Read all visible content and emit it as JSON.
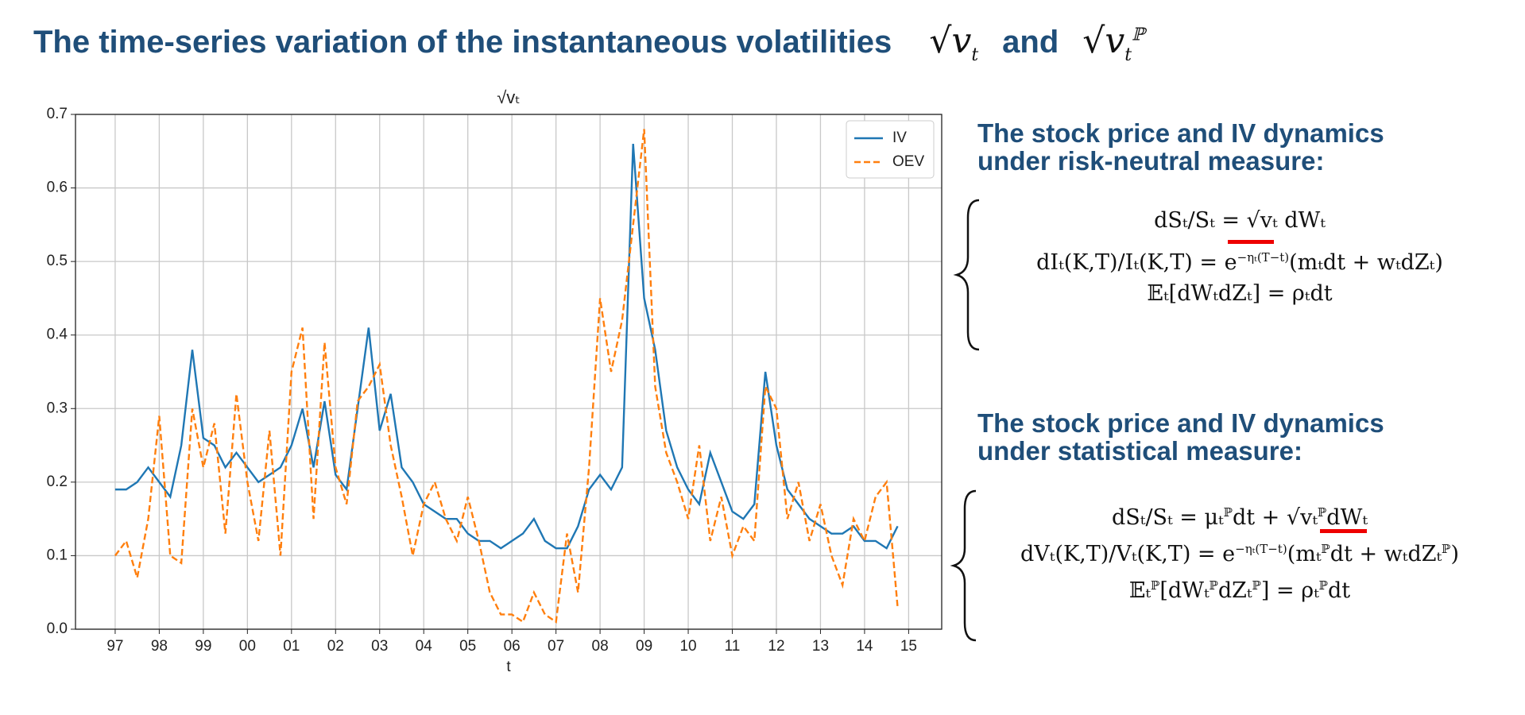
{
  "header": {
    "title": "The time-series variation of the instantaneous volatilities",
    "math1": {
      "base": "√v",
      "sub": "t"
    },
    "conj": "and",
    "math2": {
      "base": "√v",
      "sub": "t",
      "sup": "ℙ"
    }
  },
  "chart_data": {
    "type": "line",
    "title": "√vₜ",
    "xlabel": "t",
    "x": [
      1997,
      1997.25,
      1997.5,
      1997.75,
      1998,
      1998.25,
      1998.5,
      1998.75,
      1999,
      1999.25,
      1999.5,
      1999.75,
      2000,
      2000.25,
      2000.5,
      2000.75,
      2001,
      2001.25,
      2001.5,
      2001.75,
      2002,
      2002.25,
      2002.5,
      2002.75,
      2003,
      2003.25,
      2003.5,
      2003.75,
      2004,
      2004.25,
      2004.5,
      2004.75,
      2005,
      2005.25,
      2005.5,
      2005.75,
      2006,
      2006.25,
      2006.5,
      2006.75,
      2007,
      2007.25,
      2007.5,
      2007.75,
      2008,
      2008.25,
      2008.5,
      2008.75,
      2009,
      2009.25,
      2009.5,
      2009.75,
      2010,
      2010.25,
      2010.5,
      2010.75,
      2011,
      2011.25,
      2011.5,
      2011.75,
      2012,
      2012.25,
      2012.5,
      2012.75,
      2013,
      2013.25,
      2013.5,
      2013.75,
      2014,
      2014.25,
      2014.5,
      2014.75
    ],
    "series": [
      {
        "name": "IV",
        "color": "#1f77b4",
        "dash": false,
        "values": [
          0.19,
          0.19,
          0.2,
          0.22,
          0.2,
          0.18,
          0.25,
          0.38,
          0.26,
          0.25,
          0.22,
          0.24,
          0.22,
          0.2,
          0.21,
          0.22,
          0.25,
          0.3,
          0.22,
          0.31,
          0.21,
          0.19,
          0.3,
          0.41,
          0.27,
          0.32,
          0.22,
          0.2,
          0.17,
          0.16,
          0.15,
          0.15,
          0.13,
          0.12,
          0.12,
          0.11,
          0.12,
          0.13,
          0.15,
          0.12,
          0.11,
          0.11,
          0.14,
          0.19,
          0.21,
          0.19,
          0.22,
          0.66,
          0.45,
          0.38,
          0.27,
          0.22,
          0.19,
          0.17,
          0.24,
          0.2,
          0.16,
          0.15,
          0.17,
          0.35,
          0.25,
          0.19,
          0.17,
          0.15,
          0.14,
          0.13,
          0.13,
          0.14,
          0.12,
          0.12,
          0.11,
          0.14
        ]
      },
      {
        "name": "OEV",
        "color": "#ff7f0e",
        "dash": true,
        "values": [
          0.1,
          0.12,
          0.07,
          0.15,
          0.29,
          0.1,
          0.09,
          0.3,
          0.22,
          0.28,
          0.13,
          0.32,
          0.2,
          0.12,
          0.27,
          0.1,
          0.35,
          0.41,
          0.15,
          0.39,
          0.22,
          0.17,
          0.31,
          0.33,
          0.36,
          0.25,
          0.18,
          0.1,
          0.17,
          0.2,
          0.15,
          0.12,
          0.18,
          0.12,
          0.05,
          0.02,
          0.02,
          0.01,
          0.05,
          0.02,
          0.01,
          0.13,
          0.05,
          0.22,
          0.45,
          0.35,
          0.42,
          0.55,
          0.68,
          0.33,
          0.24,
          0.2,
          0.15,
          0.25,
          0.12,
          0.18,
          0.1,
          0.14,
          0.12,
          0.33,
          0.3,
          0.15,
          0.2,
          0.12,
          0.17,
          0.1,
          0.06,
          0.15,
          0.12,
          0.18,
          0.2,
          0.03
        ]
      }
    ],
    "xlim": [
      1996.1,
      2015.75
    ],
    "xticks": [
      {
        "value": 1997,
        "label": "97"
      },
      {
        "value": 1998,
        "label": "98"
      },
      {
        "value": 1999,
        "label": "99"
      },
      {
        "value": 2000,
        "label": "00"
      },
      {
        "value": 2001,
        "label": "01"
      },
      {
        "value": 2002,
        "label": "02"
      },
      {
        "value": 2003,
        "label": "03"
      },
      {
        "value": 2004,
        "label": "04"
      },
      {
        "value": 2005,
        "label": "05"
      },
      {
        "value": 2006,
        "label": "06"
      },
      {
        "value": 2007,
        "label": "07"
      },
      {
        "value": 2008,
        "label": "08"
      },
      {
        "value": 2009,
        "label": "09"
      },
      {
        "value": 2010,
        "label": "10"
      },
      {
        "value": 2011,
        "label": "11"
      },
      {
        "value": 2012,
        "label": "12"
      },
      {
        "value": 2013,
        "label": "13"
      },
      {
        "value": 2014,
        "label": "14"
      },
      {
        "value": 2015,
        "label": "15"
      }
    ],
    "ylim": [
      0,
      0.7
    ],
    "yticks": [
      {
        "value": 0,
        "label": "0.0"
      },
      0.1,
      0.2,
      0.3,
      0.4,
      0.5,
      0.6,
      0.7
    ],
    "grid": true,
    "legend": "upper right"
  },
  "sections": [
    {
      "heading": [
        "The stock price and IV dynamics",
        "under risk-neutral measure:"
      ],
      "equations": [
        [
          {
            "text": "dSₜ/Sₜ = √vₜ dWₜ"
          }
        ],
        [
          {
            "text": "dIₜ(K,T)/Iₜ(K,T) = e"
          },
          {
            "sup": "−ηₜ(T−t)"
          },
          {
            "text": "(mₜdt + wₜdZₜ)"
          }
        ],
        [
          {
            "text": "𝔼ₜ[dWₜdZₜ] = ρₜdt"
          }
        ]
      ]
    },
    {
      "heading": [
        "The stock price and IV dynamics",
        "under statistical measure:"
      ],
      "equations": [
        [
          {
            "text": "dSₜ/Sₜ = μₜ"
          },
          {
            "sup": "ℙ"
          },
          {
            "text": "dt + √vₜ"
          },
          {
            "sup": "ℙ"
          },
          {
            "text": "dWₜ"
          }
        ],
        [
          {
            "text": "dVₜ(K,T)/Vₜ(K,T) = e"
          },
          {
            "sup": "−ηₜ(T−t)"
          },
          {
            "text": "(mₜ"
          },
          {
            "sup": "ℙ"
          },
          {
            "text": "dt + wₜdZₜ"
          },
          {
            "sup": "ℙ"
          },
          {
            "text": ")"
          }
        ],
        [
          {
            "text": "𝔼ₜ"
          },
          {
            "sup": "ℙ"
          },
          {
            "text": "[dWₜ"
          },
          {
            "sup": "ℙ"
          },
          {
            "text": "dZₜ"
          },
          {
            "sup": "ℙ"
          },
          {
            "text": "] = ρₜ"
          },
          {
            "sup": "ℙ"
          },
          {
            "text": "dt"
          }
        ]
      ]
    }
  ]
}
